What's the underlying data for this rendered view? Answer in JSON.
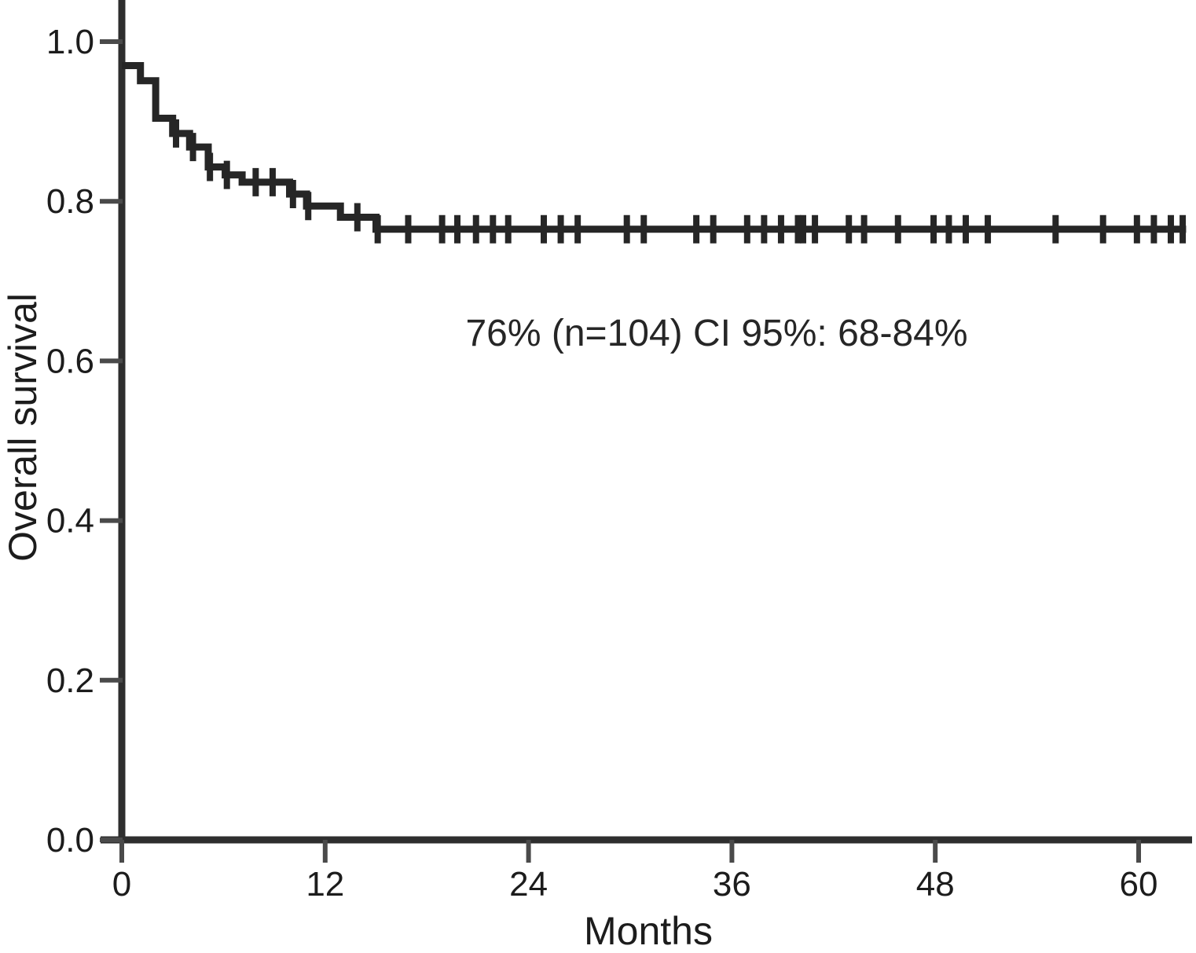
{
  "chart_data": {
    "type": "line",
    "subtype": "kaplan_meier_step",
    "title": "",
    "xlabel": "Months",
    "ylabel": "Overall survival",
    "annotation": "76% (n=104) CI 95%: 68-84%",
    "x_tick_labels": [
      "0",
      "12",
      "24",
      "36",
      "48",
      "60"
    ],
    "y_tick_labels": [
      "0.0",
      "0.2",
      "0.4",
      "0.6",
      "0.8",
      "1.0"
    ],
    "xlim": [
      0,
      63.2
    ],
    "ylim": [
      0,
      1.05
    ],
    "grid": false,
    "legend": "none",
    "colors": {
      "curve": "#262626",
      "axis": "#2e2e2e",
      "tick": "#4a4a4a",
      "text": "#1c1c1c",
      "background": "#ffffff"
    },
    "series": [
      {
        "name": "Overall survival",
        "steps": [
          [
            0,
            0.97
          ],
          [
            1.1,
            0.951
          ],
          [
            2.0,
            0.904
          ],
          [
            3.0,
            0.885
          ],
          [
            4.0,
            0.868
          ],
          [
            5.1,
            0.843
          ],
          [
            6.1,
            0.833
          ],
          [
            7.1,
            0.824
          ],
          [
            9.9,
            0.809
          ],
          [
            10.9,
            0.794
          ],
          [
            12.9,
            0.78
          ],
          [
            15.0,
            0.765
          ]
        ],
        "end_x": 62.8,
        "plateau_value": 0.765,
        "censor_times": [
          3.2,
          4.2,
          5.2,
          6.2,
          7.9,
          8.9,
          10.1,
          11.0,
          13.9,
          15.1,
          16.9,
          18.9,
          19.8,
          20.9,
          21.9,
          22.8,
          24.9,
          25.9,
          26.9,
          29.8,
          30.8,
          33.9,
          34.9,
          36.9,
          37.9,
          38.9,
          39.9,
          40.2,
          40.9,
          42.9,
          43.8,
          45.8,
          47.9,
          48.8,
          49.8,
          51.1,
          55.1,
          57.9,
          59.9,
          60.9,
          61.9,
          62.6
        ]
      }
    ]
  }
}
